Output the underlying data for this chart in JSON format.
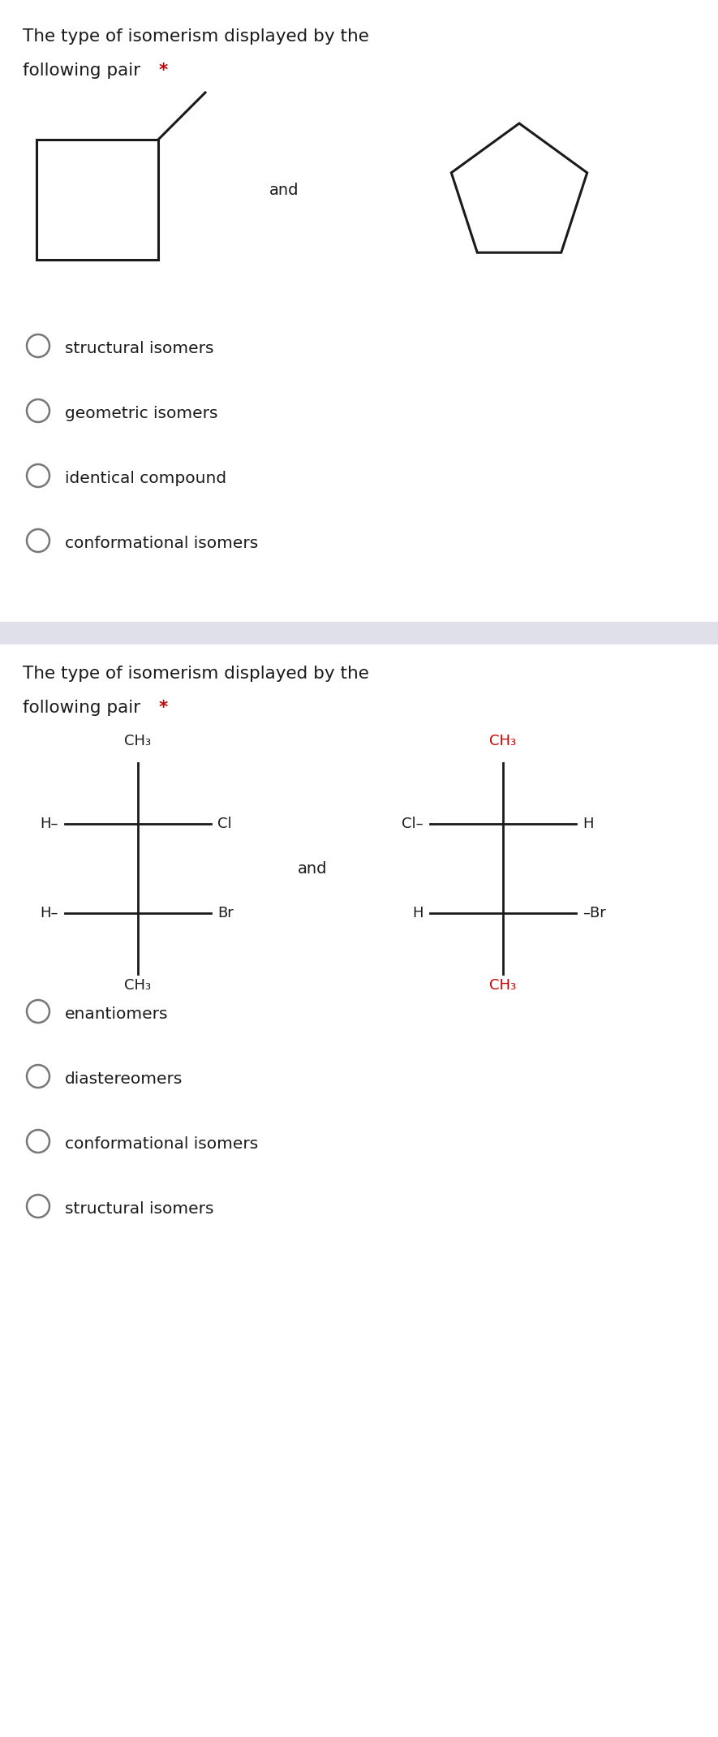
{
  "bg_color": "#ffffff",
  "separator_color": "#e0e0ea",
  "text_color": "#1a1a1a",
  "star_color": "#cc0000",
  "circle_color": "#777777",
  "squiggle_color": "#cc0000",
  "line_color": "#1a1a1a",
  "font_size_title": 15.5,
  "font_size_options": 14.5,
  "font_size_chem": 13,
  "font_size_and": 14,
  "question1": {
    "title_line1": "The type of isomerism displayed by the",
    "title_line2": "following pair ",
    "star": "*",
    "and_text": "and",
    "options": [
      "structural isomers",
      "geometric isomers",
      "identical compound",
      "conformational isomers"
    ]
  },
  "question2": {
    "title_line1": "The type of isomerism displayed by the",
    "title_line2": "following pair ",
    "star": "*",
    "and_text": "and",
    "options": [
      "enantiomers",
      "diastereomers",
      "conformational isomers",
      "structural isomers"
    ]
  }
}
